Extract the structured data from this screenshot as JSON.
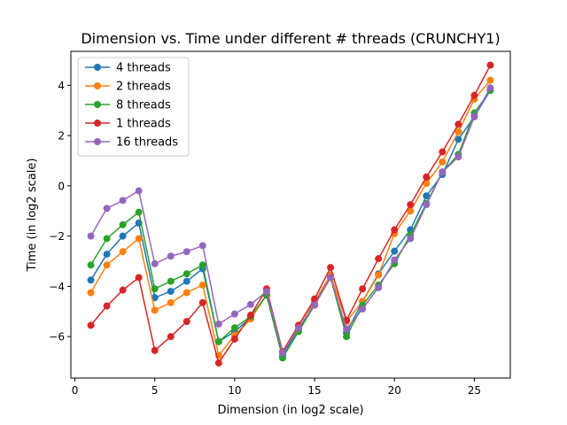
{
  "chart_data": {
    "type": "line",
    "title": "Dimension vs. Time under different # threads (CRUNCHY1)",
    "xlabel": "Dimension (in log2 scale)",
    "ylabel": "Time (in log2 scale)",
    "xlim": [
      -0.25,
      27.25
    ],
    "ylim": [
      -7.65,
      5.35
    ],
    "xticks": [
      0,
      5,
      10,
      15,
      20,
      25
    ],
    "yticks": [
      -6,
      -4,
      -2,
      0,
      2,
      4
    ],
    "grid": false,
    "legend_position": "upper left",
    "x": [
      1,
      2,
      3,
      4,
      5,
      6,
      7,
      8,
      9,
      10,
      11,
      12,
      13,
      14,
      15,
      16,
      17,
      18,
      19,
      20,
      21,
      22,
      23,
      24,
      25,
      26
    ],
    "series": [
      {
        "name": "4 threads",
        "color": "#1f77b4",
        "values": [
          -3.75,
          -2.72,
          -2.0,
          -1.48,
          -4.45,
          -4.2,
          -3.8,
          -3.3,
          -6.2,
          -5.8,
          -5.25,
          -4.35,
          -6.75,
          -5.7,
          -4.7,
          -3.6,
          -5.85,
          -4.6,
          -3.5,
          -2.6,
          -1.75,
          -0.4,
          0.45,
          1.85,
          2.75,
          3.8
        ]
      },
      {
        "name": "2 threads",
        "color": "#ff7f0e",
        "values": [
          -4.25,
          -3.15,
          -2.62,
          -2.1,
          -4.95,
          -4.65,
          -4.25,
          -3.95,
          -6.75,
          -5.95,
          -5.3,
          -4.35,
          -6.6,
          -5.55,
          -4.6,
          -3.55,
          -5.4,
          -4.6,
          -3.55,
          -1.9,
          -1.0,
          0.1,
          0.95,
          2.15,
          3.45,
          4.2
        ]
      },
      {
        "name": "8 threads",
        "color": "#2ca02c",
        "values": [
          -3.15,
          -2.1,
          -1.55,
          -1.05,
          -4.1,
          -3.8,
          -3.5,
          -3.15,
          -6.2,
          -5.65,
          -5.2,
          -4.35,
          -6.85,
          -5.8,
          -4.75,
          -3.65,
          -6.0,
          -4.75,
          -3.95,
          -3.1,
          -1.95,
          -0.7,
          0.55,
          1.25,
          2.9,
          3.8
        ]
      },
      {
        "name": "1 threads",
        "color": "#d62728",
        "values": [
          -5.55,
          -4.78,
          -4.15,
          -3.65,
          -6.55,
          -6.0,
          -5.4,
          -4.65,
          -7.05,
          -6.1,
          -5.15,
          -4.1,
          -6.6,
          -5.55,
          -4.5,
          -3.25,
          -5.35,
          -4.1,
          -2.9,
          -1.75,
          -0.75,
          0.35,
          1.35,
          2.45,
          3.6,
          4.8
        ]
      },
      {
        "name": "16 threads",
        "color": "#9467bd",
        "values": [
          -2.0,
          -0.9,
          -0.58,
          -0.2,
          -3.1,
          -2.8,
          -2.62,
          -2.38,
          -5.5,
          -5.1,
          -4.72,
          -4.2,
          -6.65,
          -5.65,
          -4.75,
          -3.65,
          -5.7,
          -4.9,
          -4.05,
          -2.95,
          -2.1,
          -0.75,
          0.55,
          1.15,
          2.75,
          3.9
        ]
      }
    ]
  }
}
